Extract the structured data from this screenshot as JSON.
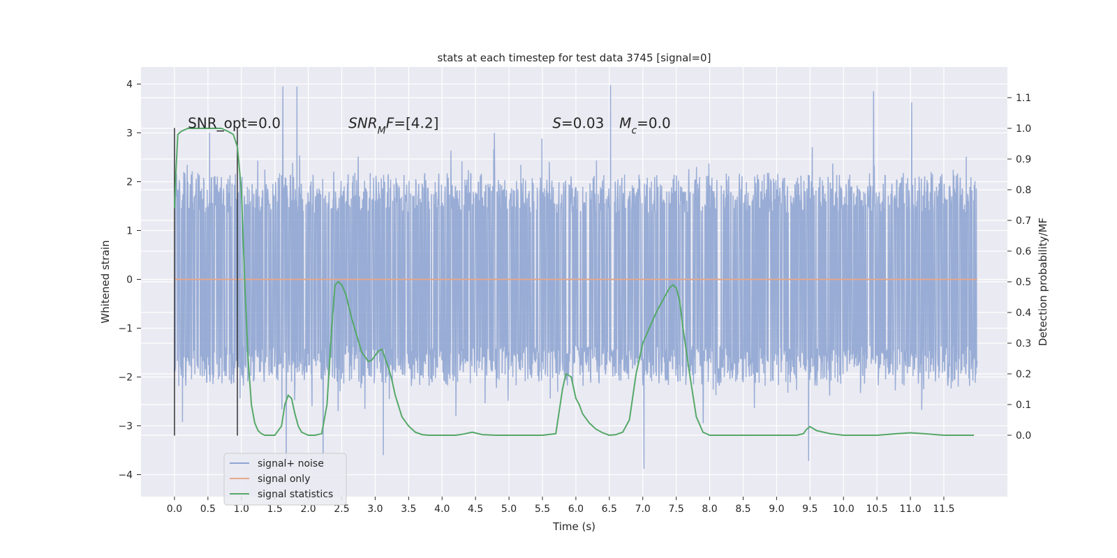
{
  "chart_data": {
    "type": "line",
    "title": "stats at each timestep for test data 3745 [signal=0]",
    "xlabel": "Time (s)",
    "ylabel_left": "Whitened strain",
    "ylabel_right": "Detection probability/MF",
    "xlim": [
      -0.5,
      12.45
    ],
    "ylim_left": [
      -4.45,
      4.35
    ],
    "ylim_right": [
      -0.2,
      1.2
    ],
    "x_ticks": [
      0.0,
      0.5,
      1.0,
      1.5,
      2.0,
      2.5,
      3.0,
      3.5,
      4.0,
      4.5,
      5.0,
      5.5,
      6.0,
      6.5,
      7.0,
      7.5,
      8.0,
      8.5,
      9.0,
      9.5,
      10.0,
      10.5,
      11.0,
      11.5
    ],
    "x_tick_labels": [
      "0.0",
      "0.5",
      "1.0",
      "1.5",
      "2.0",
      "2.5",
      "3.0",
      "3.5",
      "4.0",
      "4.5",
      "5.0",
      "5.5",
      "6.0",
      "6.5",
      "7.0",
      "7.5",
      "8.0",
      "8.5",
      "9.0",
      "9.5",
      "10.0",
      "10.5",
      "11.0",
      "11.5"
    ],
    "y_left_ticks": [
      4,
      3,
      2,
      1,
      0,
      -1,
      -2,
      -3,
      -4
    ],
    "y_left_tick_labels": [
      "4",
      "3",
      "2",
      "1",
      "0",
      "−1",
      "−2",
      "−3",
      "−4"
    ],
    "y_right_ticks": [
      1.1,
      1.0,
      0.9,
      0.8,
      0.7,
      0.6,
      0.5,
      0.4,
      0.3,
      0.2,
      0.1,
      0.0
    ],
    "y_right_tick_labels": [
      "1.1",
      "1.0",
      "0.9",
      "0.8",
      "0.7",
      "0.6",
      "0.5",
      "0.4",
      "0.3",
      "0.2",
      "0.1",
      "0.0"
    ],
    "grid": true,
    "legend_position": "lower-left",
    "legend": [
      {
        "label": "signal+ noise",
        "color": "#8fa5d1"
      },
      {
        "label": "signal only",
        "color": "#e5a88a"
      },
      {
        "label": "signal statistics",
        "color": "#55a868"
      }
    ],
    "annotations": [
      {
        "id": "snr-opt",
        "x": 0.2,
        "y": 3.2,
        "parts": [
          {
            "t": "SNR_opt=0.0",
            "i": false
          }
        ]
      },
      {
        "id": "snr-mf",
        "x": 2.6,
        "y": 3.2,
        "parts": [
          {
            "t": "SNR",
            "i": true
          },
          {
            "t": "M",
            "i": true,
            "sub": true
          },
          {
            "t": "F",
            "i": true
          },
          {
            "t": "=[4.2]",
            "i": false
          }
        ]
      },
      {
        "id": "s-value",
        "x": 5.65,
        "y": 3.2,
        "parts": [
          {
            "t": "S",
            "i": true
          },
          {
            "t": "=0.03",
            "i": false
          }
        ]
      },
      {
        "id": "mc-value",
        "x": 6.65,
        "y": 3.2,
        "parts": [
          {
            "t": "M",
            "i": true
          },
          {
            "t": "c",
            "i": true,
            "sub": true
          },
          {
            "t": "=0.0",
            "i": false
          }
        ]
      }
    ],
    "vlines": [
      {
        "x": 0.0,
        "ymin": -3.2,
        "ymax": 3.1
      },
      {
        "x": 0.94,
        "ymin": -3.2,
        "ymax": 3.1
      }
    ],
    "noise_series": {
      "name": "signal+ noise",
      "x_range": [
        0.0,
        12.0
      ],
      "n_samples": 2400,
      "typical_range": [
        -2.1,
        2.1
      ],
      "max": 3.98,
      "min": -3.88,
      "peaks": [
        [
          1.62,
          3.95
        ],
        [
          1.67,
          -3.75
        ],
        [
          1.83,
          3.95
        ],
        [
          3.12,
          -3.6
        ],
        [
          4.78,
          3.0
        ],
        [
          6.52,
          3.98
        ],
        [
          7.02,
          -3.88
        ],
        [
          10.45,
          3.85
        ],
        [
          11.02,
          3.62
        ],
        [
          2.22,
          -3.85
        ],
        [
          9.48,
          -3.72
        ]
      ]
    },
    "signal_series": {
      "name": "signal only",
      "x": [
        0.0,
        12.0
      ],
      "y": [
        0.0,
        0.0
      ]
    },
    "stat_series": {
      "name": "signal statistics",
      "x": [
        0.0,
        0.02,
        0.05,
        0.1,
        0.2,
        0.3,
        0.5,
        0.7,
        0.8,
        0.88,
        0.94,
        1.0,
        1.05,
        1.1,
        1.15,
        1.2,
        1.25,
        1.3,
        1.35,
        1.4,
        1.5,
        1.6,
        1.65,
        1.7,
        1.75,
        1.8,
        1.85,
        1.9,
        2.0,
        2.1,
        2.2,
        2.28,
        2.35,
        2.4,
        2.45,
        2.5,
        2.56,
        2.65,
        2.8,
        2.9,
        2.95,
        3.0,
        3.05,
        3.1,
        3.2,
        3.25,
        3.3,
        3.4,
        3.5,
        3.6,
        3.7,
        3.8,
        4.0,
        4.2,
        4.3,
        4.45,
        4.6,
        4.8,
        5.0,
        5.5,
        5.7,
        5.8,
        5.85,
        5.93,
        6.0,
        6.05,
        6.1,
        6.2,
        6.3,
        6.4,
        6.5,
        6.6,
        6.7,
        6.8,
        6.9,
        7.0,
        7.1,
        7.2,
        7.3,
        7.4,
        7.45,
        7.5,
        7.55,
        7.6,
        7.7,
        7.8,
        7.9,
        8.0,
        8.2,
        8.5,
        9.0,
        9.3,
        9.4,
        9.45,
        9.5,
        9.6,
        9.8,
        10.0,
        10.5,
        10.8,
        11.0,
        11.2,
        11.5,
        11.8,
        11.95
      ],
      "y": [
        0.74,
        0.85,
        0.98,
        0.99,
        1.0,
        1.0,
        1.0,
        1.0,
        0.99,
        0.98,
        0.94,
        0.8,
        0.5,
        0.25,
        0.1,
        0.04,
        0.015,
        0.005,
        0.0,
        0.0,
        0.0,
        0.03,
        0.1,
        0.13,
        0.12,
        0.07,
        0.03,
        0.01,
        0.0,
        0.0,
        0.005,
        0.1,
        0.35,
        0.49,
        0.5,
        0.49,
        0.46,
        0.38,
        0.27,
        0.24,
        0.245,
        0.26,
        0.275,
        0.28,
        0.22,
        0.18,
        0.13,
        0.06,
        0.03,
        0.01,
        0.002,
        0.0,
        0.0,
        0.0,
        0.003,
        0.01,
        0.002,
        0.0,
        0.0,
        0.0,
        0.005,
        0.15,
        0.2,
        0.19,
        0.12,
        0.1,
        0.07,
        0.04,
        0.02,
        0.008,
        0.0,
        0.002,
        0.01,
        0.05,
        0.2,
        0.3,
        0.35,
        0.4,
        0.44,
        0.48,
        0.49,
        0.48,
        0.44,
        0.35,
        0.2,
        0.06,
        0.01,
        0.0,
        0.0,
        0.0,
        0.0,
        0.0,
        0.005,
        0.02,
        0.028,
        0.015,
        0.005,
        0.0,
        0.0,
        0.005,
        0.008,
        0.005,
        0.0,
        0.0,
        0.0
      ]
    }
  }
}
